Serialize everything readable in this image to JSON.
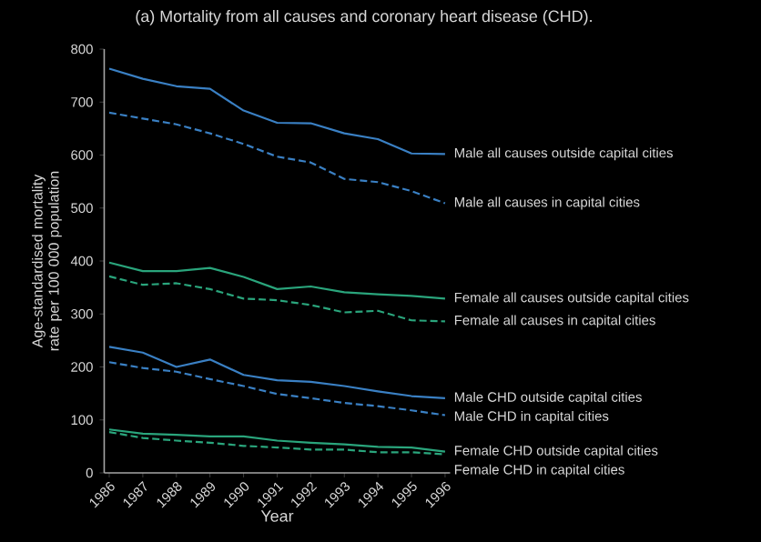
{
  "chart_data": {
    "type": "line",
    "title": "(a) Mortality from all causes and coronary heart disease (CHD).",
    "xlabel": "Year",
    "ylabel": "Age-standardised mortality rate per 100 000 population",
    "categories": [
      "1986",
      "1987",
      "1988",
      "1989",
      "1990",
      "1991",
      "1992",
      "1993",
      "1994",
      "1995",
      "1996"
    ],
    "ylim": [
      0,
      800
    ],
    "yticks": [
      0,
      100,
      200,
      300,
      400,
      500,
      600,
      700,
      800
    ],
    "grid": false,
    "legend": false,
    "marker": "none",
    "series": [
      {
        "name": "Male all causes outside capital cities",
        "color": "#3a80c4",
        "line_style": "solid",
        "values": [
          763,
          744,
          730,
          725,
          684,
          661,
          660,
          641,
          630,
          603,
          602
        ]
      },
      {
        "name": "Male all causes in capital cities",
        "color": "#3a80c4",
        "line_style": "dashed",
        "values": [
          680,
          669,
          658,
          641,
          621,
          597,
          586,
          555,
          549,
          532,
          509
        ]
      },
      {
        "name": "Female all causes outside capital cities",
        "color": "#2aa57c",
        "line_style": "solid",
        "values": [
          397,
          381,
          381,
          387,
          370,
          347,
          352,
          341,
          337,
          334,
          329
        ]
      },
      {
        "name": "Female all causes in capital cities",
        "color": "#2aa57c",
        "line_style": "dashed",
        "values": [
          371,
          355,
          358,
          347,
          329,
          326,
          317,
          303,
          306,
          288,
          286
        ]
      },
      {
        "name": "Male CHD outside capital cities",
        "color": "#3a80c4",
        "line_style": "solid",
        "values": [
          238,
          227,
          200,
          214,
          185,
          175,
          172,
          164,
          154,
          145,
          141
        ]
      },
      {
        "name": "Male CHD in capital cities",
        "color": "#3a80c4",
        "line_style": "dashed",
        "values": [
          209,
          198,
          191,
          177,
          164,
          149,
          141,
          132,
          126,
          118,
          109
        ]
      },
      {
        "name": "Female CHD outside capital cities",
        "color": "#2aa57c",
        "line_style": "solid",
        "values": [
          82,
          74,
          72,
          69,
          69,
          61,
          57,
          54,
          49,
          48,
          40
        ]
      },
      {
        "name": "Female CHD in capital cities",
        "color": "#2aa57c",
        "line_style": "dashed",
        "values": [
          77,
          66,
          61,
          57,
          51,
          48,
          44,
          44,
          39,
          39,
          35
        ]
      }
    ]
  }
}
